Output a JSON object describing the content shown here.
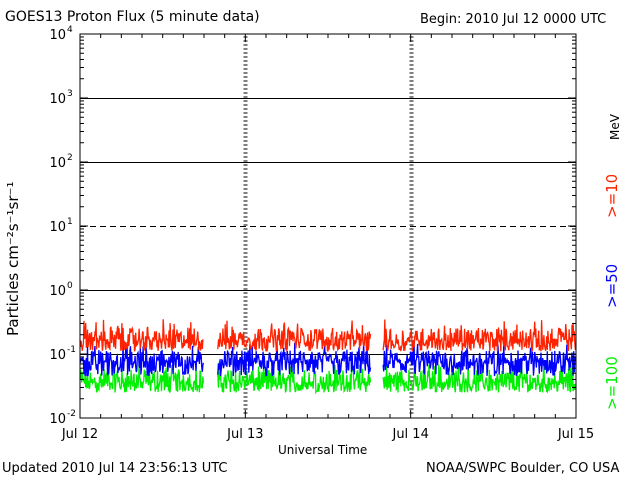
{
  "header": {
    "title": "GOES13 Proton Flux (5 minute data)",
    "begin": "Begin: 2010 Jul 12 0000 UTC"
  },
  "footer": {
    "updated": "Updated 2010 Jul 14 23:56:13 UTC",
    "credit": "NOAA/SWPC Boulder, CO USA"
  },
  "chart_data": {
    "type": "line",
    "title": "GOES13 Proton Flux (5 minute data)",
    "xlabel": "Universal Time",
    "ylabel": "Particles cm⁻²s⁻¹sr⁻¹",
    "y_scale": "log",
    "ylim": [
      0.01,
      10000
    ],
    "y_ticks": [
      {
        "value": 0.01,
        "base": "10",
        "exp": "-2"
      },
      {
        "value": 0.1,
        "base": "10",
        "exp": "-1"
      },
      {
        "value": 1,
        "base": "10",
        "exp": "0"
      },
      {
        "value": 10,
        "base": "10",
        "exp": "1"
      },
      {
        "value": 100,
        "base": "10",
        "exp": "2"
      },
      {
        "value": 1000,
        "base": "10",
        "exp": "3"
      },
      {
        "value": 10000,
        "base": "10",
        "exp": "4"
      }
    ],
    "xlim": [
      "2010-07-12",
      "2010-07-15"
    ],
    "x_ticks": [
      "Jul 12",
      "Jul 13",
      "Jul 14",
      "Jul 15"
    ],
    "reference_lines": [
      {
        "value": 0.1,
        "style": "solid"
      },
      {
        "value": 1,
        "style": "solid"
      },
      {
        "value": 10,
        "style": "dashed"
      },
      {
        "value": 100,
        "style": "solid"
      },
      {
        "value": 1000,
        "style": "solid"
      }
    ],
    "data_gaps": [
      [
        "2010-07-12 18:00",
        "2010-07-12 20:00"
      ],
      [
        "2010-07-13 18:15",
        "2010-07-13 20:00"
      ]
    ],
    "legend_unit": "MeV",
    "series": [
      {
        "name": ">=10",
        "color": "#ff2200",
        "min": 0.11,
        "max": 0.35,
        "typical": 0.16
      },
      {
        "name": ">=50",
        "color": "#0000ff",
        "min": 0.045,
        "max": 0.15,
        "typical": 0.075
      },
      {
        "name": ">=100",
        "color": "#00ee00",
        "min": 0.025,
        "max": 0.08,
        "typical": 0.035
      }
    ]
  }
}
